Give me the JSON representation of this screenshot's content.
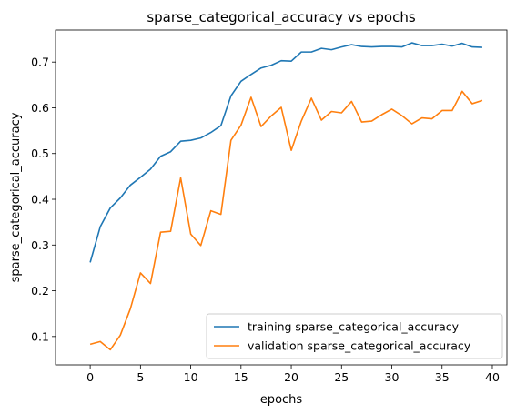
{
  "chart_data": {
    "type": "line",
    "title": "sparse_categorical_accuracy vs epochs",
    "xlabel": "epochs",
    "ylabel": "sparse_categorical_accuracy",
    "xlim": [
      -3.45,
      41.45
    ],
    "ylim": [
      0.038,
      0.77
    ],
    "xticks": [
      0,
      5,
      10,
      15,
      20,
      25,
      30,
      35,
      40
    ],
    "yticks": [
      0.1,
      0.2,
      0.3,
      0.4,
      0.5,
      0.6,
      0.7
    ],
    "legend_position": "bottom-right",
    "grid": false,
    "series": [
      {
        "name": "training sparse_categorical_accuracy",
        "color": "#1f77b4",
        "x": [
          0,
          1,
          2,
          3,
          4,
          5,
          6,
          7,
          8,
          9,
          10,
          11,
          12,
          13,
          14,
          15,
          16,
          17,
          18,
          19,
          20,
          21,
          22,
          23,
          24,
          25,
          26,
          27,
          28,
          29,
          30,
          31,
          32,
          33,
          34,
          35,
          36,
          37,
          38,
          39
        ],
        "values": [
          0.262,
          0.34,
          0.381,
          0.403,
          0.431,
          0.448,
          0.466,
          0.494,
          0.504,
          0.527,
          0.529,
          0.534,
          0.546,
          0.561,
          0.626,
          0.658,
          0.673,
          0.687,
          0.693,
          0.703,
          0.702,
          0.722,
          0.722,
          0.73,
          0.727,
          0.733,
          0.738,
          0.734,
          0.733,
          0.734,
          0.734,
          0.733,
          0.742,
          0.736,
          0.736,
          0.739,
          0.735,
          0.741,
          0.733,
          0.732
        ]
      },
      {
        "name": "validation sparse_categorical_accuracy",
        "color": "#ff7f0e",
        "x": [
          0,
          1,
          2,
          3,
          4,
          5,
          6,
          7,
          8,
          9,
          10,
          11,
          12,
          13,
          14,
          15,
          16,
          17,
          18,
          19,
          20,
          21,
          22,
          23,
          24,
          25,
          26,
          27,
          28,
          29,
          30,
          31,
          32,
          33,
          34,
          35,
          36,
          37,
          38,
          39
        ],
        "values": [
          0.083,
          0.089,
          0.071,
          0.103,
          0.161,
          0.239,
          0.216,
          0.328,
          0.33,
          0.447,
          0.324,
          0.299,
          0.375,
          0.367,
          0.529,
          0.562,
          0.623,
          0.559,
          0.582,
          0.601,
          0.507,
          0.571,
          0.621,
          0.573,
          0.592,
          0.589,
          0.614,
          0.569,
          0.571,
          0.585,
          0.597,
          0.583,
          0.565,
          0.578,
          0.576,
          0.594,
          0.594,
          0.636,
          0.609,
          0.616
        ]
      }
    ]
  }
}
